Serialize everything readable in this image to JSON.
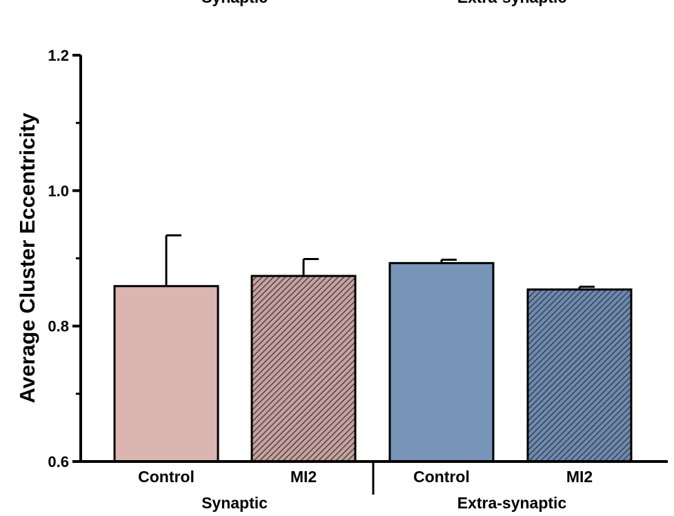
{
  "chart_data": {
    "type": "bar",
    "ylabel": "Average Cluster Eccentricity",
    "ylim": [
      0.6,
      1.2
    ],
    "yticks": [
      {
        "value": 0.6,
        "label": "0.6"
      },
      {
        "value": 0.8,
        "label": "0.8"
      },
      {
        "value": 1.0,
        "label": "1.0"
      },
      {
        "value": 1.2,
        "label": "1.2"
      }
    ],
    "y_minor_ticks": [
      0.7,
      0.9,
      1.1
    ],
    "categories": [
      "Control",
      "MI2",
      "Control",
      "MI2"
    ],
    "groups": [
      {
        "label": "Synaptic",
        "categories": [
          0,
          1
        ]
      },
      {
        "label": "Extra-synaptic",
        "categories": [
          2,
          3
        ]
      }
    ],
    "top_labels": [
      "Synaptic",
      "Extra-synaptic"
    ],
    "values": [
      0.859,
      0.874,
      0.893,
      0.854
    ],
    "error": [
      0.075,
      0.025,
      0.005,
      0.004
    ],
    "bar_colors": [
      "#dbb5b2",
      "#c4a29f",
      "#7894b8",
      "#5a7396"
    ],
    "hatched": [
      false,
      true,
      false,
      true
    ],
    "grid": false,
    "legend": "none"
  }
}
